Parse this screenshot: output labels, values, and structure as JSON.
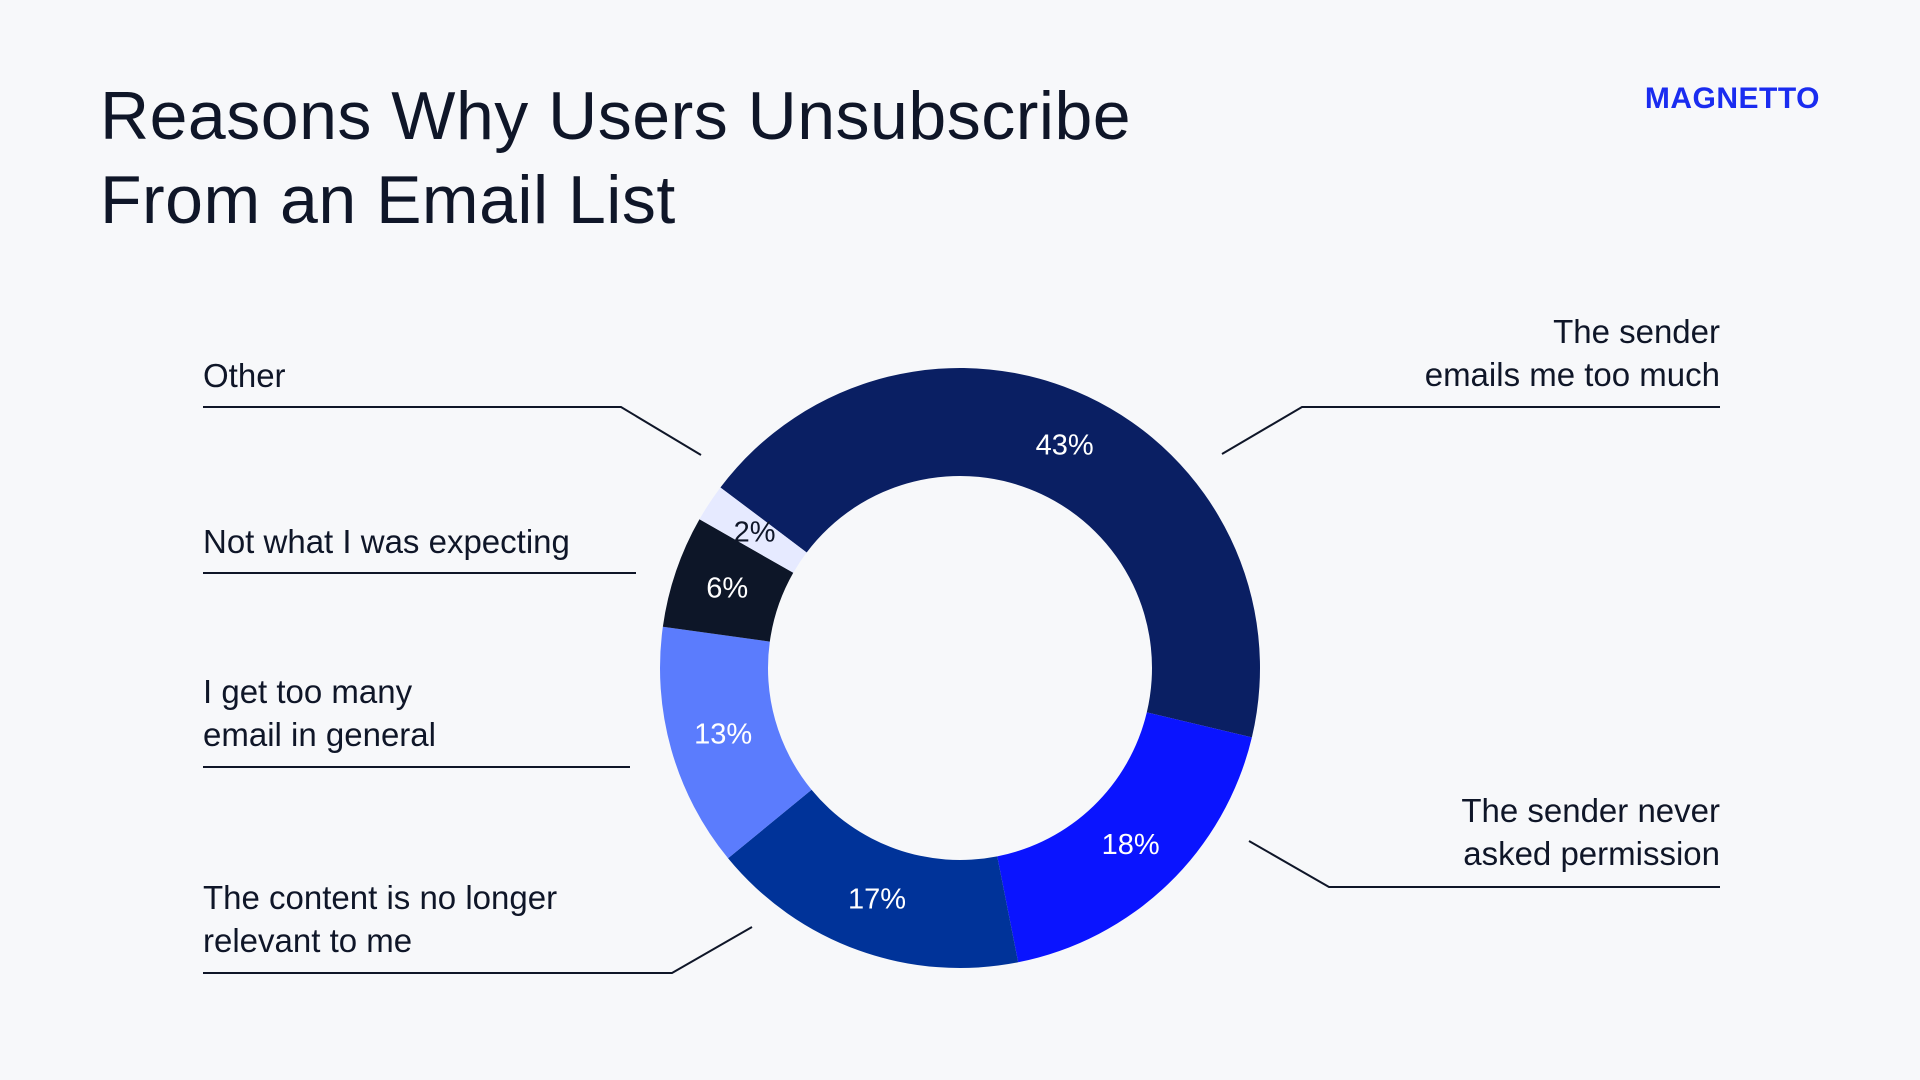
{
  "header": {
    "title_line1": "Reasons Why Users Unsubscribe",
    "title_line2": "From an Email List",
    "brand": "MAGNETTO"
  },
  "colors": {
    "background": "#f7f8fa",
    "text": "#0f1628",
    "brand": "#1a2cf0"
  },
  "chart_data": {
    "type": "pie",
    "title": "Reasons Why Users Unsubscribe From an Email List",
    "unit": "%",
    "slices": [
      {
        "name": "The sender emails me too much",
        "label_lines": [
          "The sender",
          "emails me too much"
        ],
        "value": 43,
        "value_label": "43%",
        "color": "#0a1f63",
        "text_color": "#ffffff"
      },
      {
        "name": "The sender never asked permission",
        "label_lines": [
          "The sender never",
          "asked permission"
        ],
        "value": 18,
        "value_label": "18%",
        "color": "#0a14ff",
        "text_color": "#ffffff"
      },
      {
        "name": "The content is no longer relevant to me",
        "label_lines": [
          "The content is no longer",
          "relevant to me"
        ],
        "value": 17,
        "value_label": "17%",
        "color": "#003399",
        "text_color": "#ffffff"
      },
      {
        "name": "I get too many email in general",
        "label_lines": [
          "I get too many",
          "email in general"
        ],
        "value": 13,
        "value_label": "13%",
        "color": "#5b7cfd",
        "text_color": "#ffffff"
      },
      {
        "name": "Not what I was expecting",
        "label_lines": [
          "Not what I was expecting"
        ],
        "value": 6,
        "value_label": "6%",
        "color": "#0d1628",
        "text_color": "#ffffff"
      },
      {
        "name": "Other",
        "label_lines": [
          "Other"
        ],
        "value": 2,
        "value_label": "2%",
        "color": "#e6eaff",
        "text_color": "#0f1628"
      }
    ]
  }
}
